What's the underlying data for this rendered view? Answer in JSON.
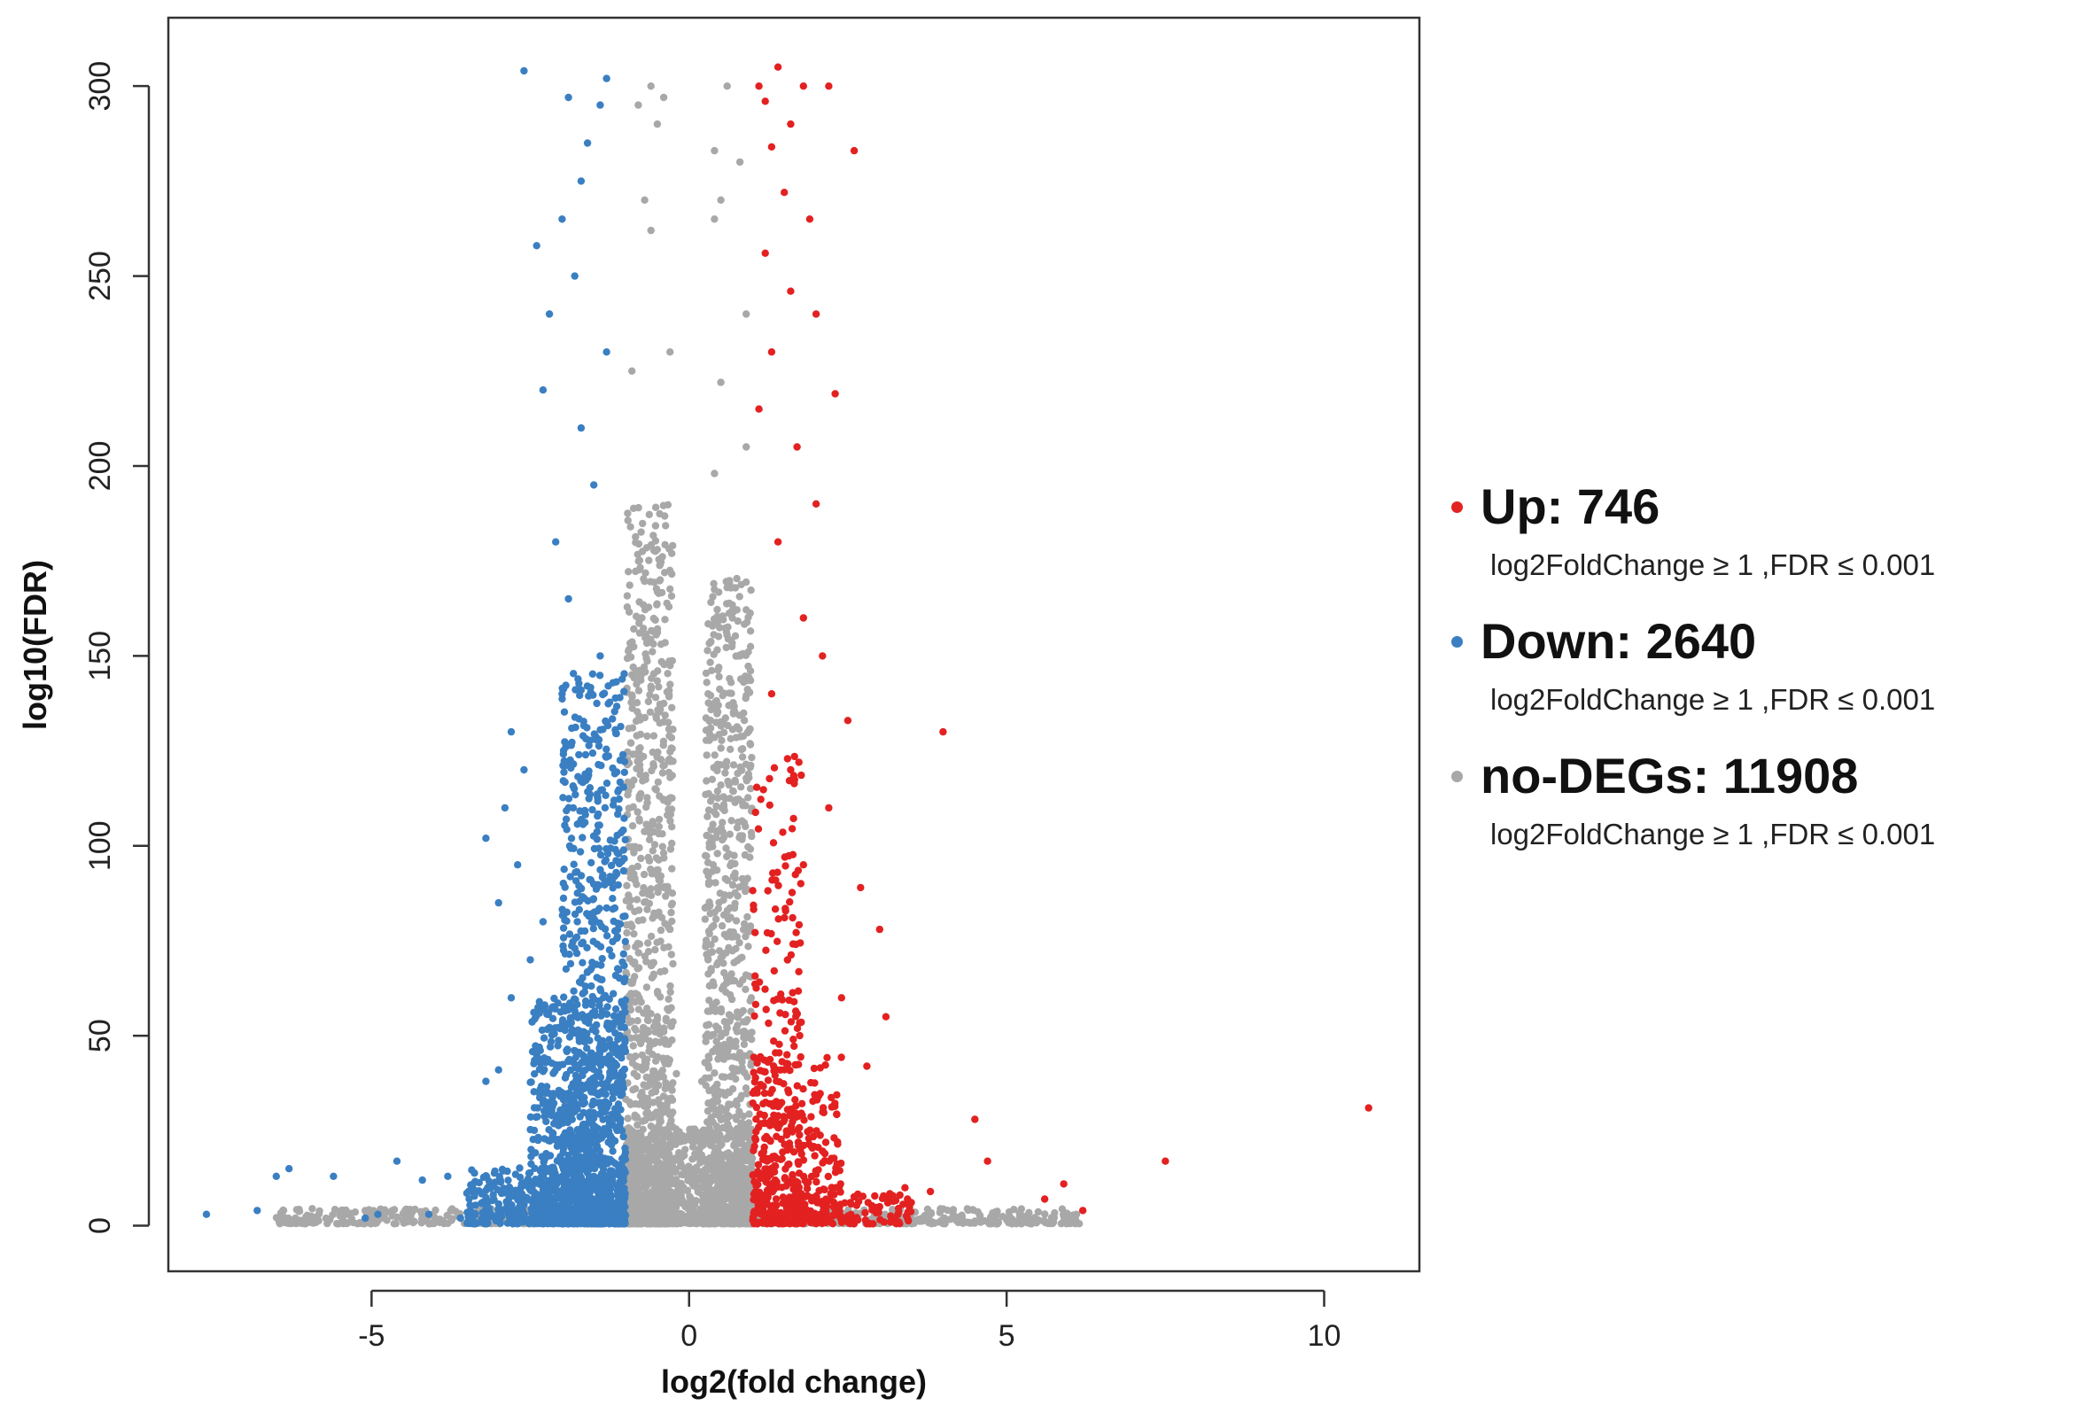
{
  "chart_data": {
    "type": "scatter",
    "title": "",
    "xlabel": "log2(fold change)",
    "ylabel": "log10(FDR)",
    "xlim": [
      -8.2,
      11.5
    ],
    "ylim": [
      -12,
      318
    ],
    "xticks": [
      -5,
      0,
      5,
      10
    ],
    "yticks": [
      0,
      50,
      100,
      150,
      200,
      250,
      300
    ],
    "grid": false,
    "legend_position": "right",
    "thresholds": {
      "log2_fold_change": 1,
      "fdr": 0.001
    },
    "series": [
      {
        "name": "no-DEGs",
        "count": 11908,
        "color": "#a8a8a8",
        "points": [
          [
            -0.6,
            300
          ],
          [
            -0.4,
            297
          ],
          [
            -0.8,
            295
          ],
          [
            -0.5,
            290
          ],
          [
            -0.7,
            270
          ],
          [
            -0.6,
            262
          ],
          [
            -0.3,
            230
          ],
          [
            -0.9,
            225
          ],
          [
            0.6,
            300
          ],
          [
            0.4,
            283
          ],
          [
            0.8,
            280
          ],
          [
            0.5,
            270
          ],
          [
            0.4,
            265
          ],
          [
            0.9,
            240
          ],
          [
            0.5,
            222
          ],
          [
            0.9,
            205
          ],
          [
            0.4,
            198
          ],
          [
            0.6,
            168
          ],
          [
            0.8,
            150
          ],
          [
            0.3,
            140
          ],
          [
            -0.5,
            178
          ],
          [
            -0.8,
            160
          ],
          [
            -0.6,
            142
          ],
          [
            -0.4,
            112
          ],
          [
            0.5,
            116
          ],
          [
            0.7,
            92
          ],
          [
            -0.3,
            78
          ],
          [
            0.3,
            70
          ],
          [
            0.6,
            52
          ],
          [
            -0.5,
            55
          ],
          [
            -0.2,
            40
          ],
          [
            0.2,
            38
          ],
          [
            -6.2,
            2
          ],
          [
            -5.4,
            3
          ],
          [
            -4.2,
            2
          ],
          [
            -3.1,
            1.5
          ],
          [
            3.5,
            2
          ],
          [
            4.2,
            1.5
          ],
          [
            5.1,
            1
          ],
          [
            5.5,
            1.5
          ],
          [
            5.9,
            2.5
          ],
          [
            6.1,
            3
          ]
        ],
        "dense_bands": [
          {
            "x_range": [
              -1.0,
              -0.25
            ],
            "y_max": 190,
            "n": 900
          },
          {
            "x_range": [
              0.25,
              1.0
            ],
            "y_max": 170,
            "n": 800
          },
          {
            "x_range": [
              -1.0,
              1.0
            ],
            "y_max": 25,
            "n": 900
          },
          {
            "x_range": [
              -6.5,
              6.2
            ],
            "y_max": 4,
            "n": 700
          }
        ]
      },
      {
        "name": "Up",
        "count": 746,
        "color": "#e32121",
        "points": [
          [
            1.4,
            305
          ],
          [
            1.8,
            300
          ],
          [
            2.2,
            300
          ],
          [
            1.2,
            296
          ],
          [
            1.6,
            290
          ],
          [
            2.6,
            283
          ],
          [
            1.1,
            300
          ],
          [
            1.3,
            284
          ],
          [
            1.5,
            272
          ],
          [
            1.9,
            265
          ],
          [
            1.2,
            256
          ],
          [
            1.6,
            246
          ],
          [
            2.0,
            240
          ],
          [
            1.3,
            230
          ],
          [
            2.3,
            219
          ],
          [
            1.1,
            215
          ],
          [
            1.7,
            205
          ],
          [
            2.0,
            190
          ],
          [
            1.4,
            180
          ],
          [
            1.8,
            160
          ],
          [
            2.1,
            150
          ],
          [
            2.5,
            133
          ],
          [
            1.3,
            140
          ],
          [
            1.6,
            120
          ],
          [
            4.0,
            130
          ],
          [
            2.7,
            89
          ],
          [
            3.0,
            78
          ],
          [
            2.2,
            110
          ],
          [
            1.8,
            95
          ],
          [
            2.4,
            60
          ],
          [
            3.1,
            55
          ],
          [
            2.8,
            42
          ],
          [
            4.5,
            28
          ],
          [
            4.7,
            17
          ],
          [
            7.5,
            17
          ],
          [
            10.7,
            31
          ],
          [
            5.9,
            11
          ],
          [
            5.6,
            7
          ],
          [
            6.2,
            4
          ],
          [
            3.4,
            10
          ],
          [
            3.8,
            9
          ]
        ],
        "dense_bands": [
          {
            "x_range": [
              1.0,
              1.8
            ],
            "y_max": 125,
            "n": 260
          },
          {
            "x_range": [
              1.0,
              2.4
            ],
            "y_max": 45,
            "n": 260
          },
          {
            "x_range": [
              1.0,
              3.5
            ],
            "y_max": 8,
            "n": 150
          }
        ]
      },
      {
        "name": "Down",
        "count": 2640,
        "color": "#3a7fc2",
        "points": [
          [
            -2.6,
            304
          ],
          [
            -1.3,
            302
          ],
          [
            -1.9,
            297
          ],
          [
            -1.4,
            295
          ],
          [
            -1.6,
            285
          ],
          [
            -1.7,
            275
          ],
          [
            -2.0,
            265
          ],
          [
            -2.4,
            258
          ],
          [
            -1.8,
            250
          ],
          [
            -2.2,
            240
          ],
          [
            -1.3,
            230
          ],
          [
            -2.3,
            220
          ],
          [
            -1.7,
            210
          ],
          [
            -1.5,
            195
          ],
          [
            -2.1,
            180
          ],
          [
            -1.9,
            165
          ],
          [
            -1.4,
            150
          ],
          [
            -2.0,
            140
          ],
          [
            -2.8,
            130
          ],
          [
            -2.6,
            120
          ],
          [
            -2.9,
            110
          ],
          [
            -3.2,
            102
          ],
          [
            -2.7,
            95
          ],
          [
            -3.0,
            85
          ],
          [
            -2.3,
            80
          ],
          [
            -2.5,
            70
          ],
          [
            -2.8,
            60
          ],
          [
            -3.2,
            38
          ],
          [
            -3.0,
            41
          ],
          [
            -2.4,
            45
          ],
          [
            -6.3,
            15
          ],
          [
            -6.5,
            13
          ],
          [
            -5.6,
            13
          ],
          [
            -4.6,
            17
          ],
          [
            -4.2,
            12
          ],
          [
            -3.8,
            13
          ],
          [
            -3.4,
            11
          ],
          [
            -7.6,
            3
          ],
          [
            -6.8,
            4
          ],
          [
            -4.9,
            3
          ],
          [
            -5.1,
            2
          ],
          [
            -4.1,
            3
          ],
          [
            -3.6,
            2
          ]
        ],
        "dense_bands": [
          {
            "x_range": [
              -2.0,
              -1.0
            ],
            "y_max": 145,
            "n": 800
          },
          {
            "x_range": [
              -2.5,
              -1.0
            ],
            "y_max": 60,
            "n": 700
          },
          {
            "x_range": [
              -3.5,
              -1.0
            ],
            "y_max": 15,
            "n": 400
          }
        ]
      }
    ]
  },
  "legend": [
    {
      "label": "Up: 746",
      "condition": "log2FoldChange ≥ 1 ,FDR ≤ 0.001",
      "color": "#e32121"
    },
    {
      "label": "Down: 2640",
      "condition": "log2FoldChange ≥ 1 ,FDR ≤ 0.001",
      "color": "#3a7fc2"
    },
    {
      "label": "no-DEGs: 11908",
      "condition": "log2FoldChange ≥ 1 ,FDR ≤ 0.001",
      "color": "#a8a8a8"
    }
  ]
}
